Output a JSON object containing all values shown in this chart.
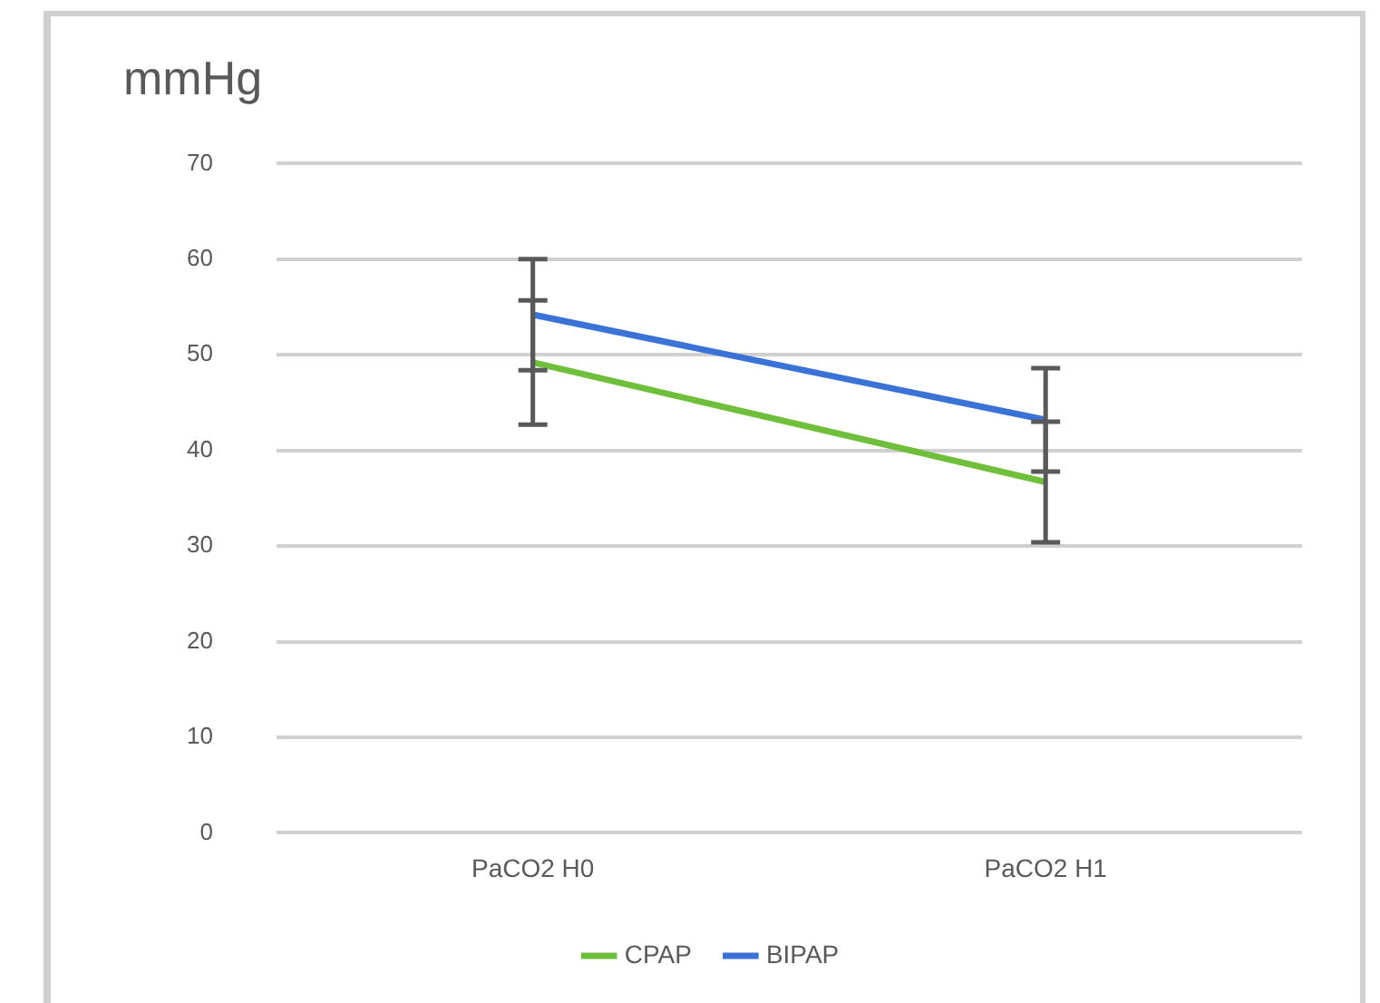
{
  "chart_data": {
    "type": "line",
    "title": "mmHg",
    "categories": [
      "PaCO2 H0",
      "PaCO2 H1"
    ],
    "series": [
      {
        "name": "CPAP",
        "color": "#70bf3c",
        "values": [
          49.2,
          36.7
        ],
        "errors": [
          6.5,
          6.3
        ]
      },
      {
        "name": "BIPAP",
        "color": "#3a72d6",
        "values": [
          54.2,
          43.2
        ],
        "errors": [
          5.8,
          5.4
        ]
      }
    ],
    "ylim": [
      0,
      70
    ],
    "yticks": [
      0,
      10,
      20,
      30,
      40,
      50,
      60,
      70
    ],
    "grid": "y",
    "legend": "bottom",
    "marker": "none",
    "line_style": "solid"
  }
}
